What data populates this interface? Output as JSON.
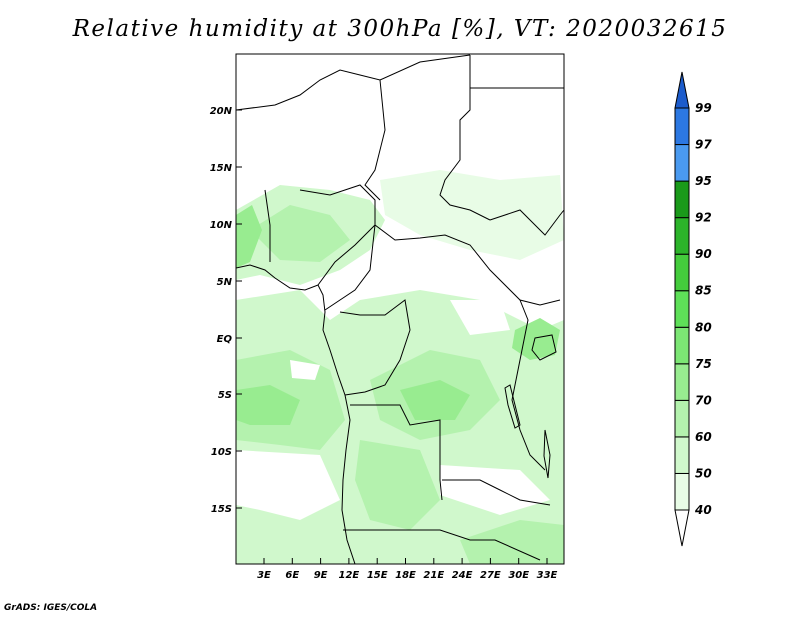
{
  "title": "Relative humidity at 300hPa [%], VT: 2020032615",
  "credit": "GrADS: IGES/COLA",
  "map": {
    "lat_ticks": [
      "20N",
      "15N",
      "10N",
      "5N",
      "EQ",
      "5S",
      "10S",
      "15S"
    ],
    "lon_ticks": [
      "3E",
      "6E",
      "9E",
      "12E",
      "15E",
      "18E",
      "21E",
      "24E",
      "27E",
      "30E",
      "33E"
    ]
  },
  "colorbar": {
    "levels": [
      "40",
      "50",
      "60",
      "70",
      "75",
      "80",
      "85",
      "90",
      "92",
      "95",
      "97",
      "99"
    ],
    "colors": [
      "#ffffff",
      "#e8fce6",
      "#d0f8cc",
      "#b4f2ae",
      "#98ec90",
      "#7ce674",
      "#5ee058",
      "#44cc3c",
      "#2cb42a",
      "#1a9a1a",
      "#4a9af0",
      "#2c78e2",
      "#1c5ccc"
    ]
  }
}
